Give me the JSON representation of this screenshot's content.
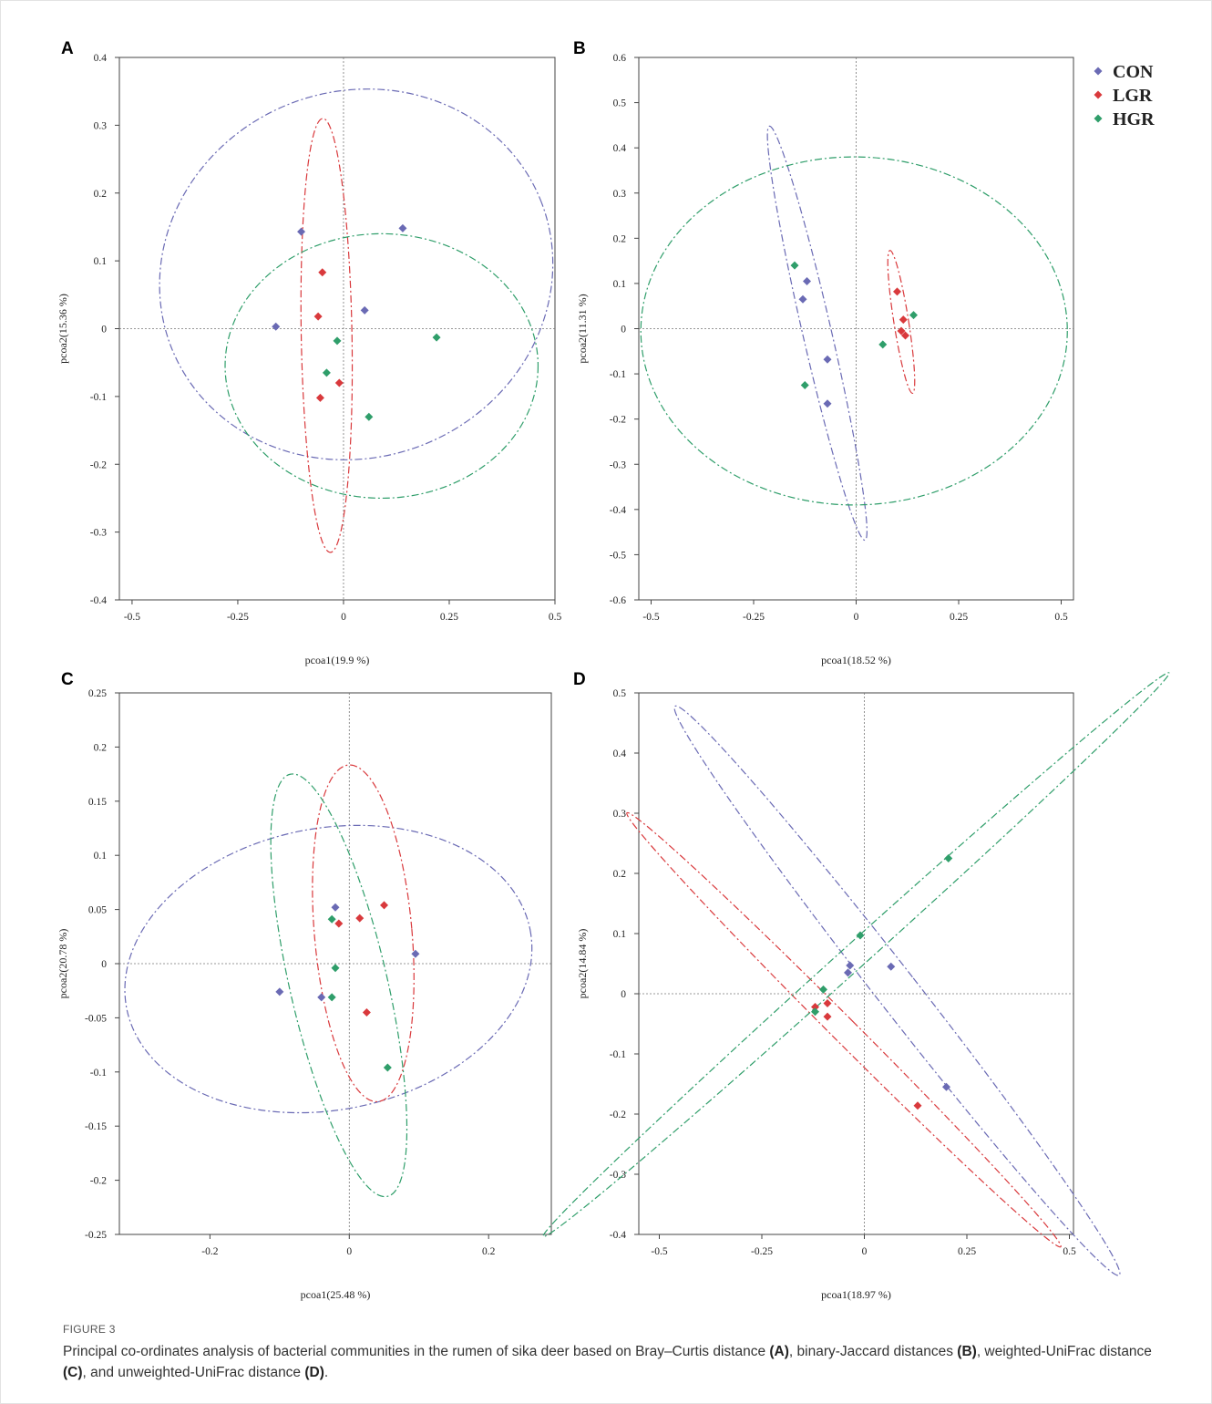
{
  "colors": {
    "CON": "#6a6ab4",
    "LGR": "#d9393c",
    "HGR": "#2f9e6a"
  },
  "legend": [
    {
      "name": "CON",
      "color": "#6a6ab4"
    },
    {
      "name": "LGR",
      "color": "#d9393c"
    },
    {
      "name": "HGR",
      "color": "#2f9e6a"
    }
  ],
  "caption": {
    "label": "FIGURE 3",
    "text": "Principal co-ordinates analysis of bacterial communities in the rumen of sika deer based on Bray–Curtis distance",
    "a_label": "(A)",
    "text_after_a": ", binary-Jaccard distances ",
    "b_label": "(B)",
    "text_after_b": ", weighted-UniFrac distance ",
    "c_label": "(C)",
    "text_after_c": ", and unweighted-UniFrac distance ",
    "d_label": "(D)",
    "text_end": "."
  },
  "chart_data": [
    {
      "panel": "A",
      "type": "scatter",
      "xlabel": "pcoa1(19.9 %)",
      "ylabel": "pcoa2(15.36 %)",
      "xlim": [
        -0.53,
        0.5
      ],
      "ylim": [
        -0.4,
        0.4
      ],
      "xticks": [
        -0.5,
        -0.25,
        0,
        0.25,
        0.5
      ],
      "xtick_labels": [
        "-0.5",
        "-0.25",
        "0",
        "0.25",
        "0.5"
      ],
      "yticks": [
        -0.4,
        -0.3,
        -0.2,
        -0.1,
        0,
        0.1,
        0.2,
        0.3,
        0.4
      ],
      "ytick_labels": [
        "-0.4",
        "-0.3",
        "-0.2",
        "-0.1",
        "0",
        "0.1",
        "0.2",
        "0.3",
        "0.4"
      ],
      "series": [
        {
          "name": "CON",
          "points": [
            [
              -0.1,
              0.143
            ],
            [
              0.14,
              0.148
            ],
            [
              -0.16,
              0.003
            ],
            [
              0.05,
              0.027
            ]
          ]
        },
        {
          "name": "LGR",
          "points": [
            [
              -0.05,
              0.083
            ],
            [
              -0.06,
              0.018
            ],
            [
              -0.01,
              -0.08
            ],
            [
              -0.055,
              -0.102
            ]
          ]
        },
        {
          "name": "HGR",
          "points": [
            [
              -0.015,
              -0.018
            ],
            [
              -0.04,
              -0.065
            ],
            [
              0.22,
              -0.013
            ],
            [
              0.06,
              -0.13
            ]
          ]
        }
      ],
      "ellipses": [
        {
          "group": "CON",
          "cx": 0.03,
          "cy": 0.08,
          "rx": 0.47,
          "ry": 0.27,
          "angle": -22
        },
        {
          "group": "LGR",
          "cx": -0.04,
          "cy": -0.01,
          "rx": 0.06,
          "ry": 0.32,
          "angle": -1
        },
        {
          "group": "HGR",
          "cx": 0.09,
          "cy": -0.055,
          "rx": 0.37,
          "ry": 0.195,
          "angle": 0
        }
      ]
    },
    {
      "panel": "B",
      "type": "scatter",
      "xlabel": "pcoa1(18.52 %)",
      "ylabel": "pcoa2(11.31 %)",
      "xlim": [
        -0.53,
        0.53
      ],
      "ylim": [
        -0.6,
        0.6
      ],
      "xticks": [
        -0.5,
        -0.25,
        0,
        0.25,
        0.5
      ],
      "xtick_labels": [
        "-0.5",
        "-0.25",
        "0",
        "0.25",
        "0.5"
      ],
      "yticks": [
        -0.6,
        -0.5,
        -0.4,
        -0.3,
        -0.2,
        -0.1,
        0,
        0.1,
        0.2,
        0.3,
        0.4,
        0.5,
        0.6
      ],
      "ytick_labels": [
        "-0.6",
        "-0.5",
        "-0.4",
        "-0.3",
        "-0.2",
        "-0.1",
        "0",
        "0.1",
        "0.2",
        "0.3",
        "0.4",
        "0.5",
        "0.6"
      ],
      "series": [
        {
          "name": "CON",
          "points": [
            [
              -0.12,
              0.105
            ],
            [
              -0.13,
              0.065
            ],
            [
              -0.07,
              -0.068
            ],
            [
              -0.07,
              -0.166
            ]
          ]
        },
        {
          "name": "LGR",
          "points": [
            [
              0.1,
              0.082
            ],
            [
              0.115,
              0.02
            ],
            [
              0.11,
              -0.005
            ],
            [
              0.12,
              -0.015
            ]
          ]
        },
        {
          "name": "HGR",
          "points": [
            [
              -0.15,
              0.14
            ],
            [
              -0.125,
              -0.125
            ],
            [
              0.065,
              -0.035
            ],
            [
              0.14,
              0.03
            ]
          ]
        }
      ],
      "ellipses": [
        {
          "group": "CON",
          "cx": -0.095,
          "cy": -0.01,
          "rx": 0.035,
          "ry": 0.47,
          "angle": -13
        },
        {
          "group": "LGR",
          "cx": 0.11,
          "cy": 0.015,
          "rx": 0.018,
          "ry": 0.16,
          "angle": -9
        },
        {
          "group": "HGR",
          "cx": -0.005,
          "cy": -0.005,
          "rx": 0.52,
          "ry": 0.385,
          "angle": 0
        }
      ]
    },
    {
      "panel": "C",
      "type": "scatter",
      "xlabel": "pcoa1(25.48 %)",
      "ylabel": "pcoa2(20.78 %)",
      "xlim": [
        -0.33,
        0.29
      ],
      "ylim": [
        -0.25,
        0.25
      ],
      "xticks": [
        -0.2,
        0,
        0.2
      ],
      "xtick_labels": [
        "-0.2",
        "0",
        "0.2"
      ],
      "yticks": [
        -0.25,
        -0.2,
        -0.15,
        -0.1,
        -0.05,
        0,
        0.05,
        0.1,
        0.15,
        0.2,
        0.25
      ],
      "ytick_labels": [
        "-0.25",
        "-0.2",
        "-0.15",
        "-0.1",
        "-0.05",
        "0",
        "0.05",
        "0.1",
        "0.15",
        "0.2",
        "0.25"
      ],
      "series": [
        {
          "name": "CON",
          "points": [
            [
              -0.02,
              0.052
            ],
            [
              0.095,
              0.009
            ],
            [
              -0.1,
              -0.026
            ],
            [
              -0.04,
              -0.031
            ]
          ]
        },
        {
          "name": "LGR",
          "points": [
            [
              0.05,
              0.054
            ],
            [
              0.015,
              0.042
            ],
            [
              -0.015,
              0.037
            ],
            [
              0.025,
              -0.045
            ]
          ]
        },
        {
          "name": "HGR",
          "points": [
            [
              -0.025,
              0.041
            ],
            [
              -0.02,
              -0.004
            ],
            [
              -0.025,
              -0.031
            ],
            [
              0.055,
              -0.096
            ]
          ]
        }
      ],
      "ellipses": [
        {
          "group": "CON",
          "cx": -0.03,
          "cy": -0.005,
          "rx": 0.295,
          "ry": 0.13,
          "angle": -11
        },
        {
          "group": "LGR",
          "cx": 0.02,
          "cy": 0.028,
          "rx": 0.07,
          "ry": 0.156,
          "angle": -5
        },
        {
          "group": "HGR",
          "cx": -0.015,
          "cy": -0.02,
          "rx": 0.07,
          "ry": 0.2,
          "angle": -13
        }
      ]
    },
    {
      "panel": "D",
      "type": "scatter",
      "xlabel": "pcoa1(18.97 %)",
      "ylabel": "pcoa2(14.84 %)",
      "xlim": [
        -0.55,
        0.51
      ],
      "ylim": [
        -0.4,
        0.5
      ],
      "xticks": [
        -0.5,
        -0.25,
        0,
        0.25,
        0.5
      ],
      "xtick_labels": [
        "-0.5",
        "-0.25",
        "0",
        "0.25",
        "0.5"
      ],
      "yticks": [
        -0.4,
        -0.3,
        -0.2,
        -0.1,
        0,
        0.1,
        0.2,
        0.3,
        0.4,
        0.5
      ],
      "ytick_labels": [
        "-0.4",
        "-0.3",
        "-0.2",
        "-0.1",
        "0",
        "0.1",
        "0.2",
        "0.3",
        "0.4",
        "0.5"
      ],
      "series": [
        {
          "name": "CON",
          "points": [
            [
              -0.035,
              0.047
            ],
            [
              -0.04,
              0.035
            ],
            [
              0.065,
              0.045
            ],
            [
              0.2,
              -0.155
            ]
          ]
        },
        {
          "name": "LGR",
          "points": [
            [
              -0.09,
              -0.016
            ],
            [
              -0.09,
              -0.038
            ],
            [
              -0.12,
              -0.022
            ],
            [
              0.13,
              -0.186
            ]
          ]
        },
        {
          "name": "HGR",
          "points": [
            [
              0.205,
              0.225
            ],
            [
              -0.01,
              0.097
            ],
            [
              -0.1,
              0.007
            ],
            [
              -0.12,
              -0.03
            ]
          ]
        }
      ],
      "ellipses": [
        {
          "group": "CON",
          "cx": 0.08,
          "cy": 0.005,
          "rx": 0.05,
          "ry": 0.6,
          "angle": -38
        },
        {
          "group": "LGR",
          "cx": -0.05,
          "cy": -0.06,
          "rx": 0.03,
          "ry": 0.51,
          "angle": -45
        },
        {
          "group": "HGR",
          "cx": -0.02,
          "cy": 0.065,
          "rx": 0.03,
          "ry": 0.7,
          "angle": 48
        }
      ]
    }
  ]
}
